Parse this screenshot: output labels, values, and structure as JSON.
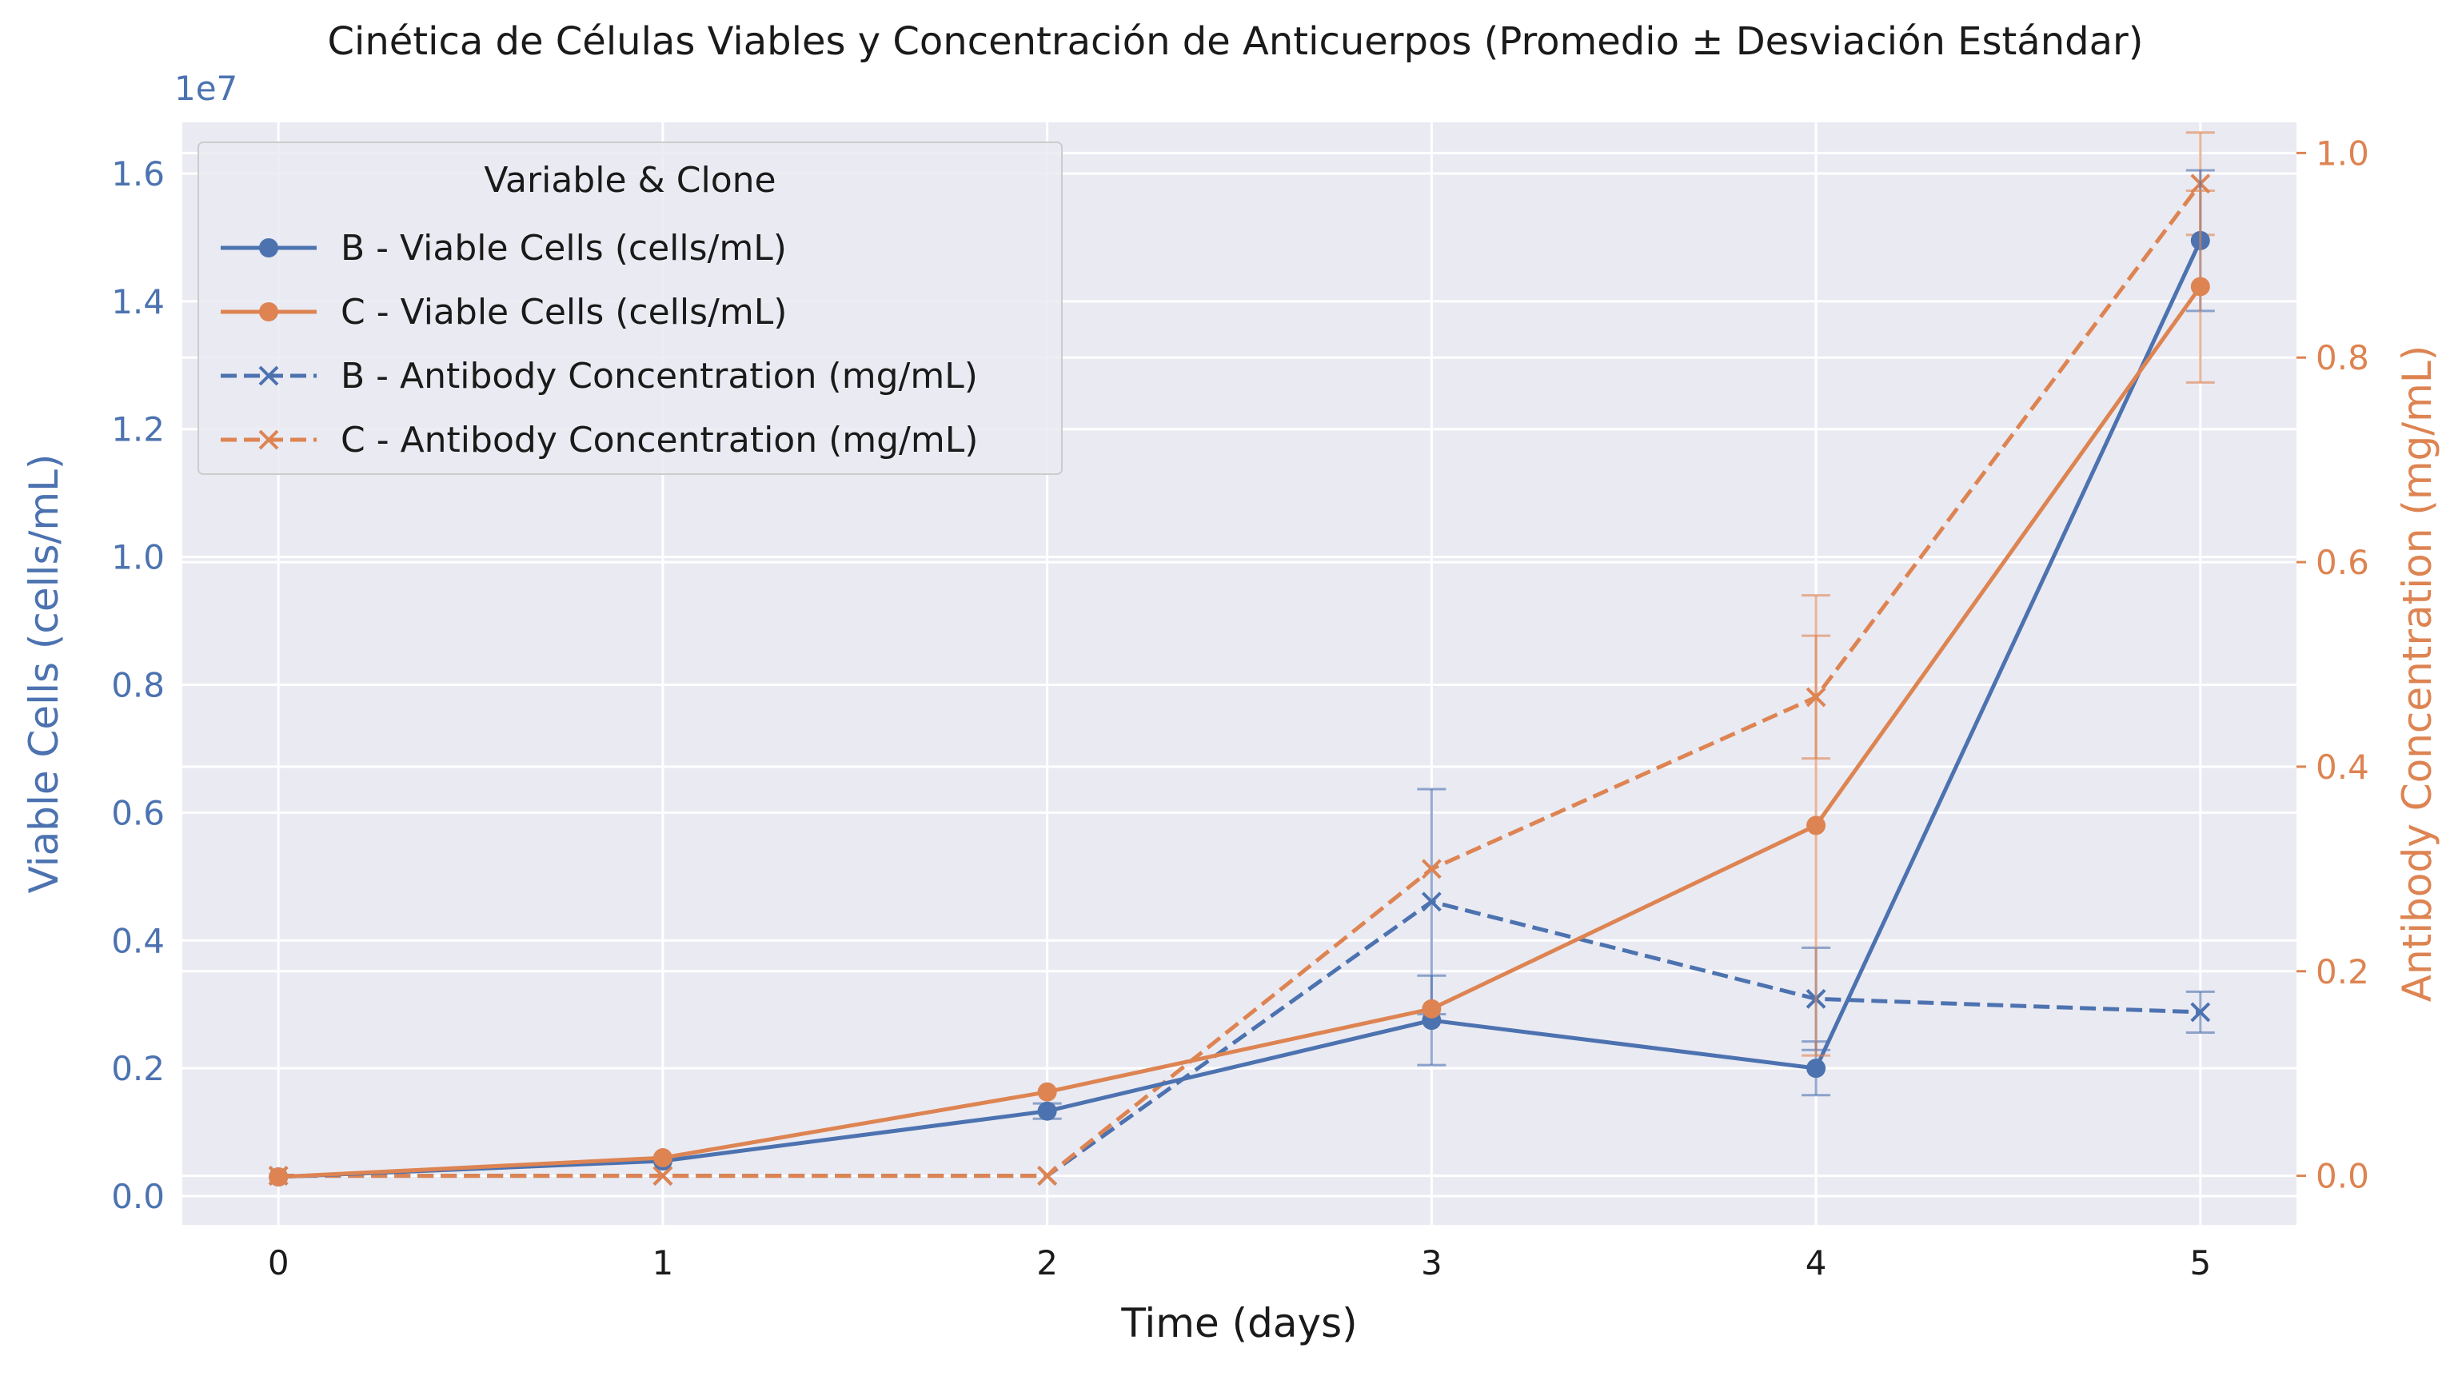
{
  "chart_data": {
    "type": "line",
    "title": "Cinética de Células Viables y Concentración de Anticuerpos (Promedio ± Desviación Estándar)",
    "xlabel": "Time (days)",
    "ylabel_left": "Viable Cells (cells/mL)",
    "ylabel_right": "Antibody Concentration (mg/mL)",
    "left_axis_offset_label": "1e7",
    "x": [
      0,
      1,
      2,
      3,
      4,
      5
    ],
    "x_ticks": [
      "0",
      "1",
      "2",
      "3",
      "4",
      "5"
    ],
    "xlim": [
      -0.25,
      5.25
    ],
    "ylim_left": [
      -0.045,
      1.68
    ],
    "ylim_right": [
      -0.048,
      1.03
    ],
    "y_ticks_left": [
      "0.0",
      "0.2",
      "0.4",
      "0.6",
      "0.8",
      "1.0",
      "1.2",
      "1.4",
      "1.6"
    ],
    "y_ticks_right": [
      "0.0",
      "0.2",
      "0.4",
      "0.6",
      "0.8",
      "1.0"
    ],
    "grid": true,
    "legend": {
      "title": "Variable & Clone",
      "placement": "top-left",
      "entries": [
        "B - Viable Cells (cells/mL)",
        "C - Viable Cells (cells/mL)",
        "B - Antibody Concentration (mg/mL)",
        "C - Antibody Concentration (mg/mL)"
      ]
    },
    "colors": {
      "blue": "#4c72b0",
      "orange": "#dd8452",
      "background": "#eaeaf2",
      "grid": "#ffffff"
    },
    "series": [
      {
        "name": "B - Viable Cells (cells/mL)",
        "axis": "left",
        "style": "solid",
        "marker": "circle",
        "color": "#4c72b0",
        "values": [
          0.03,
          0.055,
          0.133,
          0.275,
          0.2,
          1.495
        ],
        "errors": [
          0.0,
          0.0,
          0.012,
          0.07,
          0.042,
          0.11
        ]
      },
      {
        "name": "C - Viable Cells (cells/mL)",
        "axis": "left",
        "style": "solid",
        "marker": "circle",
        "color": "#dd8452",
        "values": [
          0.03,
          0.06,
          0.163,
          0.293,
          0.58,
          1.423
        ],
        "errors": [
          0.0,
          0.0,
          0.0,
          0.0,
          0.36,
          0.15
        ]
      },
      {
        "name": "B - Antibody Concentration (mg/mL)",
        "axis": "right",
        "style": "dashed",
        "marker": "x",
        "color": "#4c72b0",
        "values": [
          0.0,
          0.0,
          0.0,
          0.268,
          0.173,
          0.16
        ],
        "errors": [
          0.0,
          0.0,
          0.0,
          0.11,
          0.05,
          0.02
        ]
      },
      {
        "name": "C - Antibody Concentration (mg/mL)",
        "axis": "right",
        "style": "dashed",
        "marker": "x",
        "color": "#dd8452",
        "values": [
          0.0,
          0.0,
          0.0,
          0.3,
          0.468,
          0.97
        ],
        "errors": [
          0.0,
          0.0,
          0.0,
          0.0,
          0.06,
          0.05
        ]
      }
    ]
  }
}
